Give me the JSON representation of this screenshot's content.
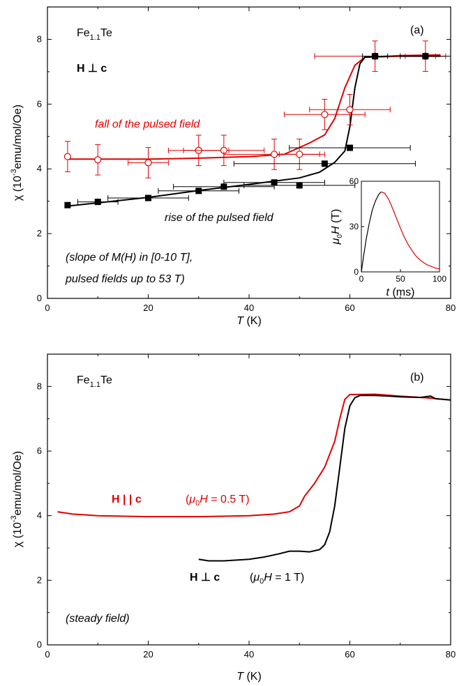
{
  "colors": {
    "red": "#e00000",
    "black": "#000000"
  },
  "chart_data": [
    {
      "type": "scatter",
      "panel_label": "(a)",
      "xlabel": {
        "symbol": "T",
        "unit": " (K)"
      },
      "ylabel": {
        "prefix": "χ (10",
        "exp": "-3",
        "suffix": "emu/mol/Oe)"
      },
      "xlim": [
        0,
        80
      ],
      "ylim": [
        0,
        9
      ],
      "xticks": [
        "0",
        "20",
        "40",
        "60",
        "80"
      ],
      "yticks": [
        "0",
        "2",
        "4",
        "6",
        "8"
      ],
      "annotations": {
        "compound": {
          "base": "Fe",
          "sub": "1.1",
          "rest": "Te"
        },
        "field_dir": "H ⊥ c",
        "fall_label": "fall of the pulsed field",
        "rise_label": "rise of the pulsed field",
        "note_line1": "(slope of M(H) in [0-10 T],",
        "note_line2": "pulsed fields up to 53 T)"
      },
      "series": [
        {
          "name": "fall of the pulsed field",
          "color": "#e00000",
          "marker": "open-circle",
          "points": [
            {
              "x": 4,
              "y": 4.38,
              "xerr": 0,
              "yerr": 0.47
            },
            {
              "x": 10,
              "y": 4.28,
              "xerr": 0,
              "yerr": 0.47
            },
            {
              "x": 20,
              "y": 4.19,
              "xerr": 4,
              "yerr": 0.47
            },
            {
              "x": 30,
              "y": 4.57,
              "xerr": 6,
              "yerr": 0.47
            },
            {
              "x": 35,
              "y": 4.57,
              "xerr": 8,
              "yerr": 0.47
            },
            {
              "x": 45,
              "y": 4.45,
              "xerr": 10,
              "yerr": 0.47
            },
            {
              "x": 50,
              "y": 4.45,
              "xerr": 4,
              "yerr": 0.47
            },
            {
              "x": 55,
              "y": 5.68,
              "xerr": 8,
              "yerr": 0.47
            },
            {
              "x": 60,
              "y": 5.83,
              "xerr": 8,
              "yerr": 0.47
            },
            {
              "x": 65,
              "y": 7.48,
              "xerr": 12,
              "yerr": 0.47
            },
            {
              "x": 75,
              "y": 7.48,
              "xerr": 4,
              "yerr": 0.47
            }
          ],
          "curve": [
            [
              4,
              4.3
            ],
            [
              10,
              4.3
            ],
            [
              20,
              4.3
            ],
            [
              30,
              4.33
            ],
            [
              40,
              4.38
            ],
            [
              47,
              4.45
            ],
            [
              52,
              4.8
            ],
            [
              55,
              5.05
            ],
            [
              57,
              5.55
            ],
            [
              59,
              6.5
            ],
            [
              61,
              7.2
            ],
            [
              63,
              7.45
            ],
            [
              70,
              7.5
            ],
            [
              78,
              7.52
            ]
          ]
        },
        {
          "name": "rise of the pulsed field",
          "color": "#000000",
          "marker": "filled-square",
          "points": [
            {
              "x": 4,
              "y": 2.88,
              "xerr": 0,
              "yerr": 0.08
            },
            {
              "x": 10,
              "y": 2.98,
              "xerr": 4,
              "yerr": 0.08
            },
            {
              "x": 20,
              "y": 3.1,
              "xerr": 8,
              "yerr": 0.08
            },
            {
              "x": 30,
              "y": 3.32,
              "xerr": 8,
              "yerr": 0.08
            },
            {
              "x": 35,
              "y": 3.45,
              "xerr": 10,
              "yerr": 0.08
            },
            {
              "x": 45,
              "y": 3.58,
              "xerr": 10,
              "yerr": 0.08
            },
            {
              "x": 50,
              "y": 3.49,
              "xerr": 11,
              "yerr": 0.08
            },
            {
              "x": 55,
              "y": 4.16,
              "xerr": 18,
              "yerr": 0.08
            },
            {
              "x": 60,
              "y": 4.65,
              "xerr": 12,
              "yerr": 0.08
            },
            {
              "x": 65,
              "y": 7.48,
              "xerr": 2.5,
              "yerr": 0.08
            },
            {
              "x": 75,
              "y": 7.48,
              "xerr": 5,
              "yerr": 0.08
            }
          ],
          "curve": [
            [
              4,
              2.85
            ],
            [
              10,
              2.95
            ],
            [
              20,
              3.12
            ],
            [
              30,
              3.33
            ],
            [
              40,
              3.52
            ],
            [
              50,
              3.72
            ],
            [
              54,
              3.9
            ],
            [
              57,
              4.2
            ],
            [
              59,
              4.55
            ],
            [
              60,
              5.3
            ],
            [
              61,
              6.5
            ],
            [
              62,
              7.25
            ],
            [
              63,
              7.45
            ],
            [
              70,
              7.48
            ],
            [
              78,
              7.48
            ]
          ]
        }
      ],
      "inset": {
        "xlabel": {
          "symbol": "t",
          "unit": " (ms)"
        },
        "ylabel": {
          "mu": "μ",
          "sub": "0",
          "sym": "H",
          "unit": " (T)"
        },
        "xlim": [
          0,
          100
        ],
        "ylim": [
          0,
          60
        ],
        "xticks": [
          "0",
          "50",
          "100"
        ],
        "yticks": [
          "0",
          "30",
          "60"
        ],
        "rise": [
          [
            0,
            0
          ],
          [
            3,
            11
          ],
          [
            6,
            21
          ],
          [
            10,
            32
          ],
          [
            14,
            41
          ],
          [
            18,
            47
          ],
          [
            22,
            51
          ],
          [
            25,
            53
          ]
        ],
        "fall": [
          [
            25,
            53
          ],
          [
            30,
            52
          ],
          [
            35,
            48
          ],
          [
            40,
            42
          ],
          [
            45,
            35.5
          ],
          [
            50,
            29
          ],
          [
            55,
            23
          ],
          [
            60,
            18
          ],
          [
            65,
            14
          ],
          [
            70,
            10.5
          ],
          [
            75,
            8
          ],
          [
            80,
            6
          ],
          [
            85,
            4.5
          ],
          [
            90,
            3.5
          ],
          [
            95,
            2.5
          ],
          [
            100,
            2
          ]
        ]
      }
    },
    {
      "type": "line",
      "panel_label": "(b)",
      "xlabel": {
        "symbol": "T",
        "unit": " (K)"
      },
      "ylabel": {
        "prefix": "χ (10",
        "exp": "-3",
        "suffix": "emu/mol/Oe)"
      },
      "xlim": [
        0,
        80
      ],
      "ylim": [
        0,
        9
      ],
      "xticks": [
        "0",
        "20",
        "40",
        "60",
        "80"
      ],
      "yticks": [
        "0",
        "2",
        "4",
        "6",
        "8"
      ],
      "annotations": {
        "compound": {
          "base": "Fe",
          "sub": "1.1",
          "rest": "Te"
        },
        "par_label": "H | | c",
        "par_field": {
          "pre": "(",
          "mu": "μ",
          "sub": "0",
          "sym": "H",
          "val": " = 0.5 T)"
        },
        "perp_label": "H ⊥ c",
        "perp_field": {
          "pre": "(",
          "mu": "μ",
          "sub": "0",
          "sym": "H",
          "val": " = 1 T)"
        },
        "note": "(steady field)"
      },
      "series": [
        {
          "name": "H || c",
          "color": "#e00000",
          "curve": [
            [
              2,
              4.12
            ],
            [
              5,
              4.05
            ],
            [
              10,
              4.0
            ],
            [
              20,
              3.97
            ],
            [
              30,
              3.97
            ],
            [
              40,
              4.0
            ],
            [
              45,
              4.05
            ],
            [
              48,
              4.12
            ],
            [
              50,
              4.3
            ],
            [
              51,
              4.6
            ],
            [
              53,
              5.0
            ],
            [
              55,
              5.5
            ],
            [
              57,
              6.3
            ],
            [
              58,
              7.0
            ],
            [
              59,
              7.6
            ],
            [
              60,
              7.75
            ],
            [
              65,
              7.76
            ],
            [
              70,
              7.7
            ],
            [
              75,
              7.65
            ],
            [
              80,
              7.58
            ]
          ]
        },
        {
          "name": "H ⊥ c",
          "color": "#000000",
          "curve": [
            [
              30,
              2.65
            ],
            [
              32,
              2.6
            ],
            [
              35,
              2.6
            ],
            [
              40,
              2.65
            ],
            [
              43,
              2.72
            ],
            [
              46,
              2.82
            ],
            [
              48,
              2.9
            ],
            [
              50,
              2.9
            ],
            [
              52,
              2.88
            ],
            [
              54,
              2.95
            ],
            [
              55,
              3.1
            ],
            [
              56,
              3.5
            ],
            [
              57,
              4.3
            ],
            [
              58,
              5.5
            ],
            [
              59,
              6.7
            ],
            [
              60,
              7.4
            ],
            [
              61,
              7.65
            ],
            [
              62,
              7.72
            ],
            [
              65,
              7.72
            ],
            [
              68,
              7.7
            ],
            [
              70,
              7.68
            ],
            [
              74,
              7.66
            ],
            [
              76,
              7.7
            ],
            [
              77,
              7.62
            ],
            [
              80,
              7.58
            ]
          ]
        }
      ]
    }
  ]
}
